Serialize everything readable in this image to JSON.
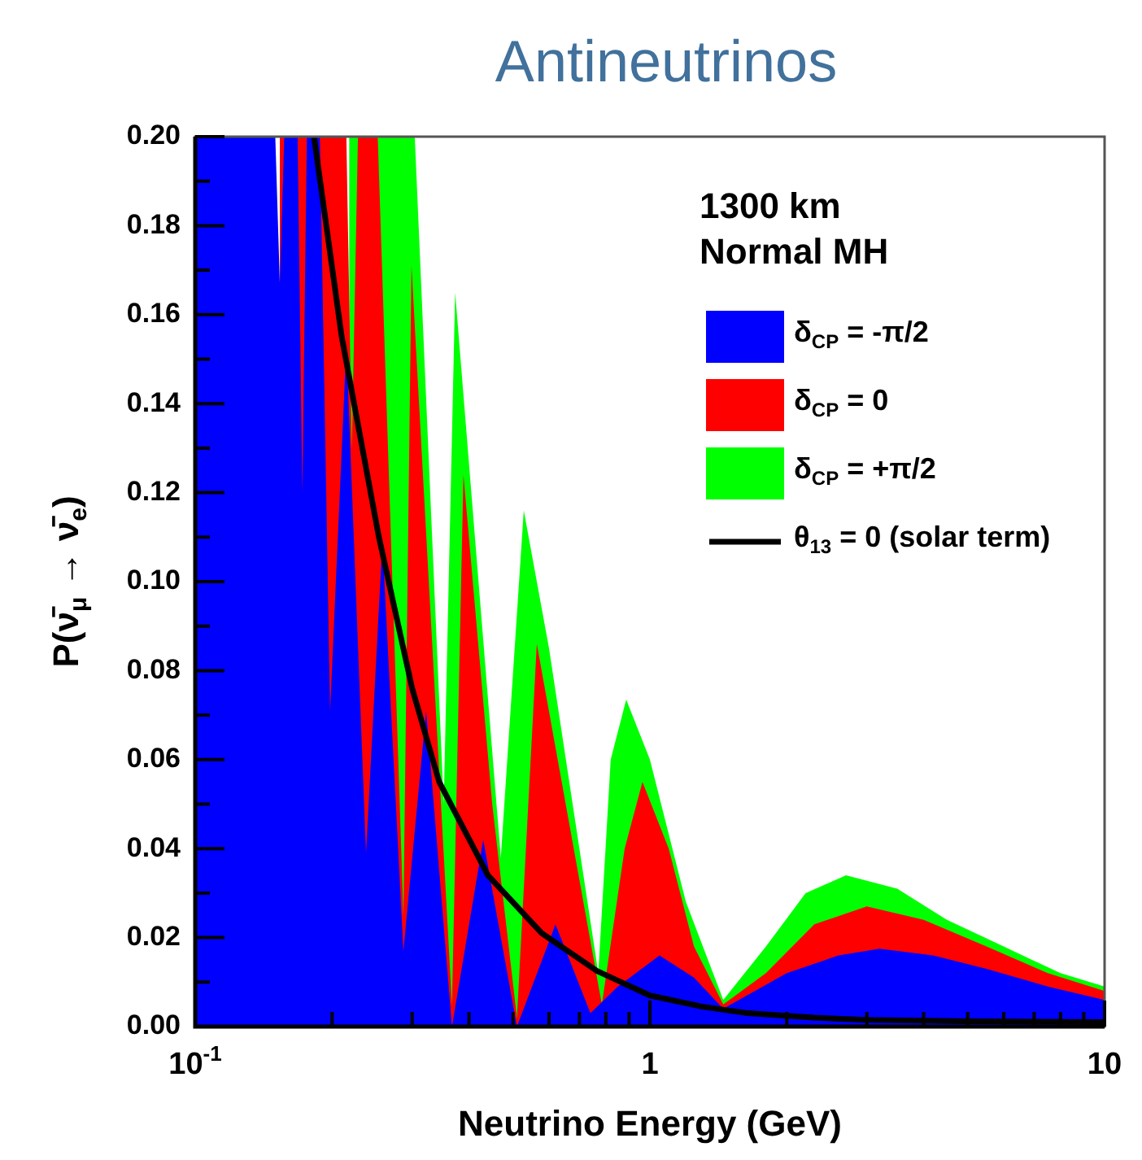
{
  "chart_data": {
    "type": "area",
    "title": "Antineutrinos",
    "xlabel": "Neutrino Energy (GeV)",
    "ylabel": "P(ν̄$_{μ}$ → ν̄$_{e}$)",
    "log": "x",
    "legend": "top right",
    "annotations": [
      "1300 km",
      "Normal MH"
    ],
    "xlim": [
      0.1,
      10
    ],
    "xticks": [
      {
        "value": 0.1,
        "label": "10$^{-1}$"
      },
      {
        "value": 0.2,
        "label": null
      },
      {
        "value": 0.3,
        "label": null
      },
      {
        "value": 0.4,
        "label": null
      },
      {
        "value": 0.5,
        "label": null
      },
      {
        "value": 0.6,
        "label": null
      },
      {
        "value": 0.7,
        "label": null
      },
      {
        "value": 0.8,
        "label": null
      },
      {
        "value": 0.9,
        "label": null
      },
      1,
      {
        "value": 2,
        "label": null
      },
      {
        "value": 3,
        "label": null
      },
      {
        "value": 4,
        "label": null
      },
      {
        "value": 5,
        "label": null
      },
      {
        "value": 6,
        "label": null
      },
      {
        "value": 7,
        "label": null
      },
      {
        "value": 8,
        "label": null
      },
      {
        "value": 9,
        "label": null
      },
      10
    ],
    "ylim": [
      0,
      0.2
    ],
    "yticks": [
      {
        "value": 0,
        "label": "0.00"
      },
      {
        "value": 0.01,
        "label": null
      },
      {
        "value": 0.02,
        "label": "0.02"
      },
      {
        "value": 0.03,
        "label": null
      },
      {
        "value": 0.04,
        "label": "0.04"
      },
      {
        "value": 0.05,
        "label": null
      },
      {
        "value": 0.06,
        "label": "0.06"
      },
      {
        "value": 0.07,
        "label": null
      },
      {
        "value": 0.08,
        "label": "0.08"
      },
      {
        "value": 0.09,
        "label": null
      },
      {
        "value": 0.1,
        "label": "0.10"
      },
      {
        "value": 0.11,
        "label": null
      },
      {
        "value": 0.12,
        "label": "0.12"
      },
      {
        "value": 0.13,
        "label": null
      },
      {
        "value": 0.14,
        "label": "0.14"
      },
      {
        "value": 0.15,
        "label": null
      },
      {
        "value": 0.16,
        "label": "0.16"
      },
      {
        "value": 0.17,
        "label": null
      },
      {
        "value": 0.18,
        "label": "0.18"
      },
      {
        "value": 0.19,
        "label": null
      },
      {
        "value": 0.2,
        "label": "0.20"
      }
    ],
    "series": [
      {
        "name": "δ$_{CP}$ = -π/2",
        "color": "#0000ff",
        "x": [
          0.1,
          0.15,
          0.1535,
          0.157,
          0.168,
          0.172,
          0.176,
          0.188,
          0.198,
          0.215,
          0.2375,
          0.258,
          0.287,
          0.322,
          0.367,
          0.43,
          0.51,
          0.62,
          0.74,
          0.85,
          1.05,
          1.25,
          1.45,
          2.0,
          2.6,
          3.2,
          4.2,
          5.5,
          7.5,
          10
        ],
        "values": [
          0.2,
          0.2,
          0.167,
          0.2,
          0.2,
          0.12,
          0.2,
          0.2,
          0.071,
          0.153,
          0.039,
          0.109,
          0.017,
          0.071,
          0.0,
          0.042,
          0.0,
          0.023,
          0.003,
          0.009,
          0.016,
          0.011,
          0.004,
          0.012,
          0.016,
          0.0175,
          0.016,
          0.013,
          0.009,
          0.006
        ]
      },
      {
        "name": "δ$_{CP}$ = 0",
        "color": "#ff0000",
        "x": [
          0.1535,
          0.215,
          0.221,
          0.228,
          0.252,
          0.287,
          0.299,
          0.367,
          0.389,
          0.45,
          0.51,
          0.564,
          0.784,
          0.88,
          0.963,
          1.1,
          1.25,
          1.45,
          1.8,
          2.3,
          3.0,
          4.0,
          5.5,
          7.5,
          10
        ],
        "values": [
          0.2,
          0.2,
          0.13,
          0.2,
          0.2,
          0.025,
          0.171,
          0.005,
          0.124,
          0.05,
          0.002,
          0.086,
          0.005,
          0.04,
          0.055,
          0.04,
          0.018,
          0.005,
          0.012,
          0.023,
          0.027,
          0.024,
          0.018,
          0.012,
          0.008
        ]
      },
      {
        "name": "δ$_{CP}$ = +π/2",
        "color": "#00ff00",
        "x": [
          0.218,
          0.304,
          0.352,
          0.373,
          0.47,
          0.528,
          0.6,
          0.77,
          0.82,
          0.887,
          1.0,
          1.2,
          1.45,
          1.8,
          2.2,
          2.7,
          3.5,
          4.5,
          6.0,
          8.0,
          10
        ],
        "values": [
          0.2,
          0.2,
          0.05,
          0.165,
          0.038,
          0.116,
          0.085,
          0.012,
          0.06,
          0.0735,
          0.06,
          0.028,
          0.006,
          0.018,
          0.03,
          0.034,
          0.031,
          0.024,
          0.018,
          0.012,
          0.009
        ]
      },
      {
        "name": "θ$_{13}$ = 0 (solar term)",
        "type": "line",
        "color": "#000000",
        "x": [
          0.1825,
          0.21,
          0.2535,
          0.3,
          0.344,
          0.4405,
          0.578,
          0.765,
          1.0,
          1.3,
          1.645,
          2.3,
          3.0,
          5.0,
          10
        ],
        "values": [
          0.2,
          0.155,
          0.11,
          0.076,
          0.055,
          0.034,
          0.021,
          0.0125,
          0.007,
          0.0045,
          0.003,
          0.002,
          0.0015,
          0.0012,
          0.001
        ]
      }
    ]
  }
}
